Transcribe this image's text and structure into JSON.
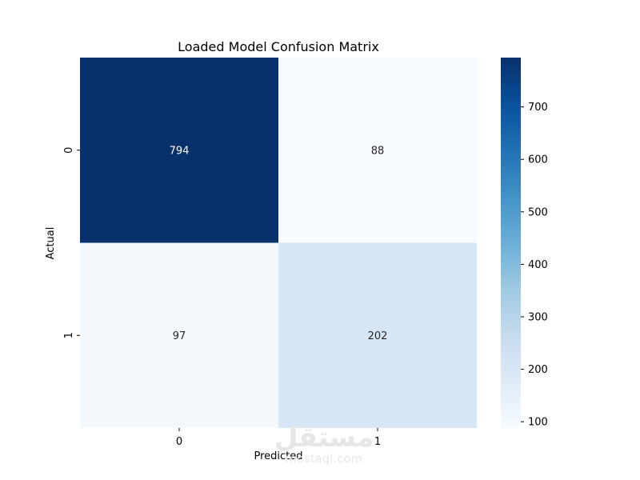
{
  "chart_data": {
    "type": "heatmap",
    "title": "Loaded Model Confusion Matrix",
    "xlabel": "Predicted",
    "ylabel": "Actual",
    "x_categories": [
      "0",
      "1"
    ],
    "y_categories": [
      "0",
      "1"
    ],
    "values": [
      [
        794,
        88
      ],
      [
        97,
        202
      ]
    ],
    "colormap": "Blues",
    "color_range": [
      88,
      794
    ],
    "colorbar_ticks": [
      100,
      200,
      300,
      400,
      500,
      600,
      700
    ]
  },
  "watermark": {
    "arabic": "مستقل",
    "latin": "mostaql.com"
  }
}
